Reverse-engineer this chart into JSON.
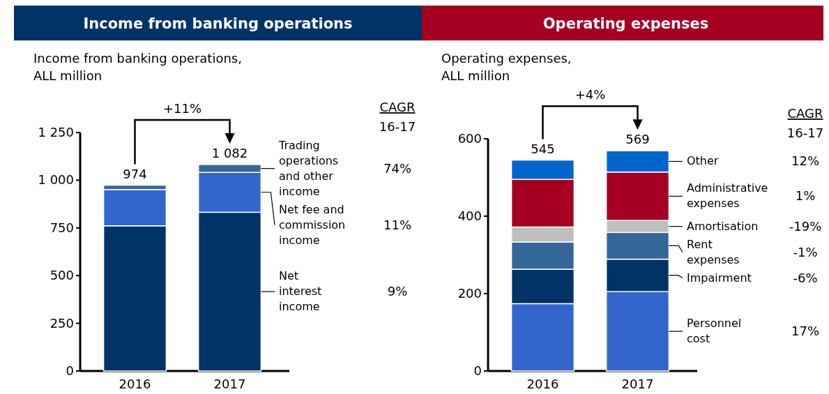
{
  "chart_data": [
    {
      "type": "bar",
      "title": "Income from banking operations",
      "subtitle": "Income from banking operations, ALL million",
      "categories": [
        "2016",
        "2017"
      ],
      "stacked": true,
      "ylim": [
        0,
        1250
      ],
      "yticks": [
        0,
        250,
        500,
        750,
        {
          "value": 1000,
          "label": "1 000"
        },
        {
          "value": 1250,
          "label": "1 250"
        }
      ],
      "grid": false,
      "legend": false,
      "series": [
        {
          "name": "Net interest income",
          "color": "#003366",
          "values": [
            761,
            832
          ]
        },
        {
          "name": "Net fee and commission income",
          "color": "#3366cc",
          "values": [
            190,
            209
          ]
        },
        {
          "name": "Trading operations and other income",
          "color": "#336699",
          "values": [
            23,
            41
          ]
        }
      ],
      "totals": [
        "974",
        "1 082"
      ],
      "annotations": [
        "+11%",
        "CAGR",
        "16-17",
        "74%",
        "11%",
        "9%"
      ]
    },
    {
      "type": "bar",
      "title": "Operating expenses",
      "subtitle": "Operating expenses, ALL million",
      "categories": [
        "2016",
        "2017"
      ],
      "stacked": true,
      "ylim": [
        0,
        600
      ],
      "yticks": [
        0,
        200,
        400,
        600
      ],
      "grid": false,
      "legend": false,
      "series": [
        {
          "name": "Personnel cost",
          "color": "#3366cc",
          "values": [
            174,
            205
          ]
        },
        {
          "name": "Impairment",
          "color": "#003366",
          "values": [
            89,
            84
          ]
        },
        {
          "name": "Rent expenses",
          "color": "#336699",
          "values": [
            70,
            69
          ]
        },
        {
          "name": "Amortisation",
          "color": "#bfbfbf",
          "values": [
            39,
            31
          ]
        },
        {
          "name": "Administrative expenses",
          "color": "#a50021",
          "values": [
            123,
            125
          ]
        },
        {
          "name": "Other",
          "color": "#0066cc",
          "values": [
            50,
            55
          ]
        }
      ],
      "totals": [
        "545",
        "569"
      ],
      "annotations": [
        "+4%",
        "CAGR",
        "16-17",
        "12%",
        "1%",
        "-19%",
        "-1%",
        "-6%",
        "17%"
      ]
    }
  ]
}
